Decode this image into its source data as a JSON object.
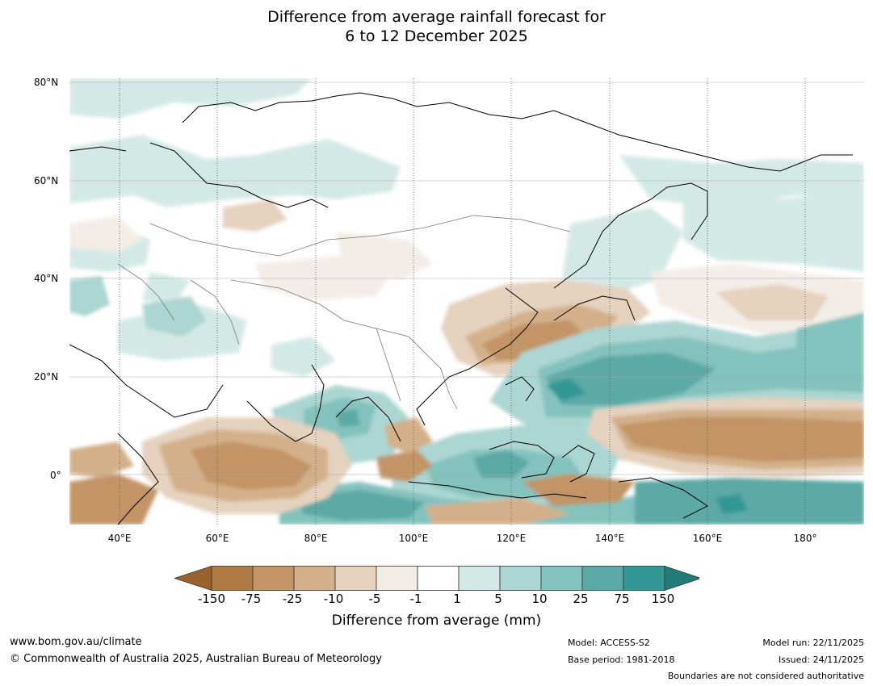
{
  "title": {
    "line1": "Difference from average rainfall forecast for",
    "line2": "6 to 12 December 2025"
  },
  "axes": {
    "lat_labels": [
      "80°N",
      "60°N",
      "40°N",
      "20°N",
      "0°"
    ],
    "lon_labels": [
      "40°E",
      "60°E",
      "80°E",
      "100°E",
      "120°E",
      "140°E",
      "160°E",
      "180°"
    ]
  },
  "colorbar": {
    "title": "Difference from average (mm)",
    "tick_labels": [
      "-150",
      "-75",
      "-25",
      "-10",
      "-5",
      "-1",
      "1",
      "5",
      "10",
      "25",
      "75",
      "150"
    ],
    "colors": [
      "#9a622d",
      "#b07a44",
      "#c29466",
      "#d3b08a",
      "#e5d2bf",
      "#f4ede7",
      "#ffffff",
      "#d4e9e7",
      "#acd6d3",
      "#84c2bd",
      "#5ba9a6",
      "#339895",
      "#247c79"
    ]
  },
  "footer": {
    "website": "www.bom.gov.au/climate",
    "copyright": "© Commonwealth of Australia 2025, Australian Bureau of Meteorology",
    "model": "Model: ACCESS-S2",
    "base_period": "Base period: 1981-2018",
    "model_run": "Model run: 22/11/2025",
    "issued": "Issued: 24/11/2025",
    "disclaimer": "Boundaries are not considered authoritative"
  }
}
